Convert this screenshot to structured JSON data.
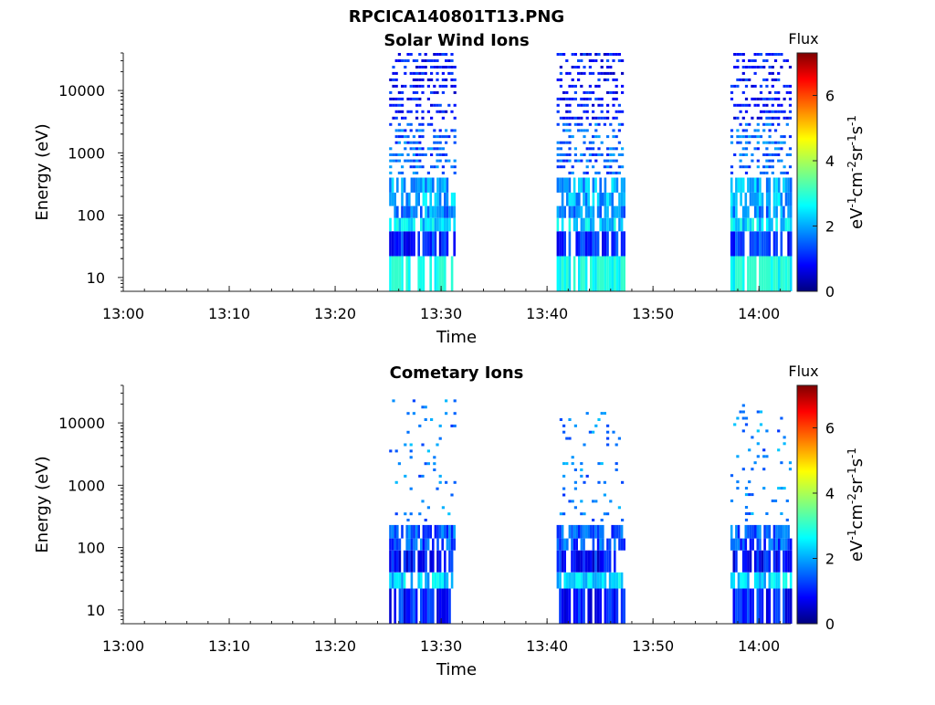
{
  "figure_title": "RPCICA140801T13.PNG",
  "chart_data": [
    {
      "type": "heatmap",
      "title": "Solar Wind Ions",
      "xlabel": "Time",
      "ylabel": "Energy (eV)",
      "x_ticks": [
        "13:00",
        "13:10",
        "13:20",
        "13:30",
        "13:40",
        "13:50",
        "14:00"
      ],
      "x_range": [
        "13:00",
        "14:03"
      ],
      "y_scale": "log",
      "y_ticks": [
        "10",
        "100",
        "1000",
        "10000"
      ],
      "y_range": [
        6,
        40000
      ],
      "colorbar": {
        "title": "Flux",
        "label": "eV-1cm-2sr-1s-1",
        "ticks": [
          "0",
          "2",
          "4",
          "6"
        ],
        "range": [
          0,
          7.3
        ],
        "colormap": "jet"
      },
      "bursts": [
        {
          "start": "13:25.1",
          "end": "13:31.2",
          "top_energy": 40000
        },
        {
          "start": "13:40.9",
          "end": "13:47.2",
          "top_energy": 40000
        },
        {
          "start": "13:57.3",
          "end": "14:03.0",
          "top_energy": 40000
        }
      ],
      "energy_bands": [
        {
          "from": 6,
          "to": 22,
          "flux": 3.0
        },
        {
          "from": 22,
          "to": 55,
          "flux": 1.2
        },
        {
          "from": 55,
          "to": 90,
          "flux": 2.5
        },
        {
          "from": 90,
          "to": 140,
          "flux": 1.9
        },
        {
          "from": 140,
          "to": 230,
          "flux": 2.2
        },
        {
          "from": 230,
          "to": 400,
          "flux": 2.1
        },
        {
          "from": 400,
          "to": 3000,
          "flux": 1.6
        },
        {
          "from": 3000,
          "to": 40000,
          "flux": 1.0
        }
      ]
    },
    {
      "type": "heatmap",
      "title": "Cometary Ions",
      "xlabel": "Time",
      "ylabel": "Energy (eV)",
      "x_ticks": [
        "13:00",
        "13:10",
        "13:20",
        "13:30",
        "13:40",
        "13:50",
        "14:00"
      ],
      "x_range": [
        "13:00",
        "14:03"
      ],
      "y_scale": "log",
      "y_ticks": [
        "10",
        "100",
        "1000",
        "10000"
      ],
      "y_range": [
        6,
        40000
      ],
      "colorbar": {
        "title": "Flux",
        "label": "eV-1cm-2sr-1s-1",
        "ticks": [
          "0",
          "2",
          "4",
          "6"
        ],
        "range": [
          0,
          7.3
        ],
        "colormap": "jet"
      },
      "bursts": [
        {
          "start": "13:25.1",
          "end": "13:31.2",
          "top_energy": 30000
        },
        {
          "start": "13:40.9",
          "end": "13:47.2",
          "top_energy": 15000
        },
        {
          "start": "13:57.3",
          "end": "14:03.0",
          "top_energy": 20000
        }
      ],
      "energy_bands": [
        {
          "from": 6,
          "to": 22,
          "flux": 1.1
        },
        {
          "from": 22,
          "to": 40,
          "flux": 2.4
        },
        {
          "from": 40,
          "to": 90,
          "flux": 1.0
        },
        {
          "from": 90,
          "to": 140,
          "flux": 1.5
        },
        {
          "from": 140,
          "to": 230,
          "flux": 1.6
        },
        {
          "from": 230,
          "to": 30000,
          "flux": 1.8
        }
      ]
    }
  ]
}
